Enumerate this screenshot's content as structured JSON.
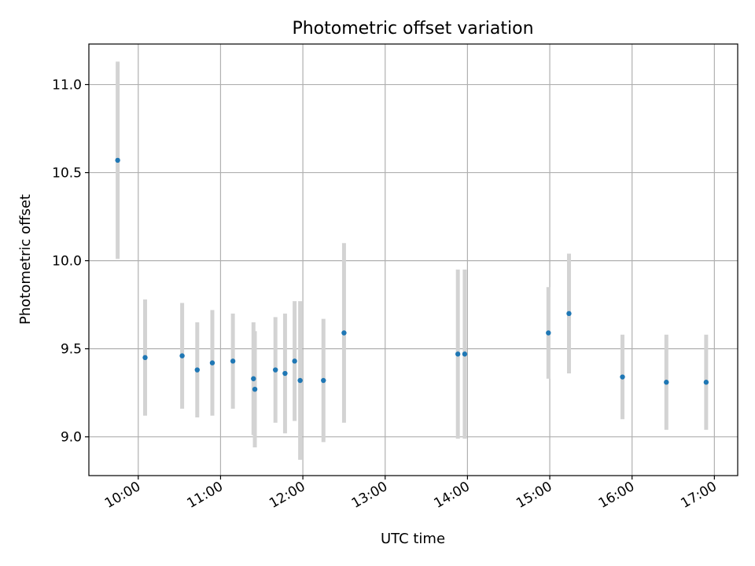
{
  "chart_data": {
    "type": "scatter",
    "title": "Photometric offset variation",
    "xlabel": "UTC time",
    "ylabel": "Photometric offset",
    "grid": true,
    "xlim": [
      "09:24",
      "17:17"
    ],
    "ylim": [
      8.78,
      11.23
    ],
    "xticks": [
      "10:00",
      "11:00",
      "12:00",
      "13:00",
      "14:00",
      "15:00",
      "16:00",
      "17:00"
    ],
    "yticks": [
      9.0,
      9.5,
      10.0,
      10.5,
      11.0
    ],
    "ytick_labels": [
      "9.0",
      "9.5",
      "10.0",
      "10.5",
      "11.0"
    ],
    "colors": {
      "points": "#1f77b4",
      "errorbars": "#d3d3d3"
    },
    "series": [
      {
        "x": [
          "09:45",
          "10:05",
          "10:32",
          "10:43",
          "10:54",
          "11:09",
          "11:24",
          "11:25",
          "11:40",
          "11:47",
          "11:54",
          "11:58",
          "12:15",
          "12:30",
          "13:53",
          "13:58",
          "14:59",
          "15:14",
          "15:53",
          "16:25",
          "16:54"
        ],
        "y": [
          10.57,
          9.45,
          9.46,
          9.38,
          9.42,
          9.43,
          9.33,
          9.27,
          9.38,
          9.36,
          9.43,
          9.32,
          9.32,
          9.59,
          9.47,
          9.47,
          9.59,
          9.7,
          9.34,
          9.31,
          9.31
        ],
        "yerr": [
          0.56,
          0.33,
          0.3,
          0.27,
          0.3,
          0.27,
          0.32,
          0.33,
          0.3,
          0.34,
          0.34,
          0.45,
          0.35,
          0.51,
          0.48,
          0.48,
          0.26,
          0.34,
          0.24,
          0.27,
          0.27
        ]
      }
    ]
  }
}
